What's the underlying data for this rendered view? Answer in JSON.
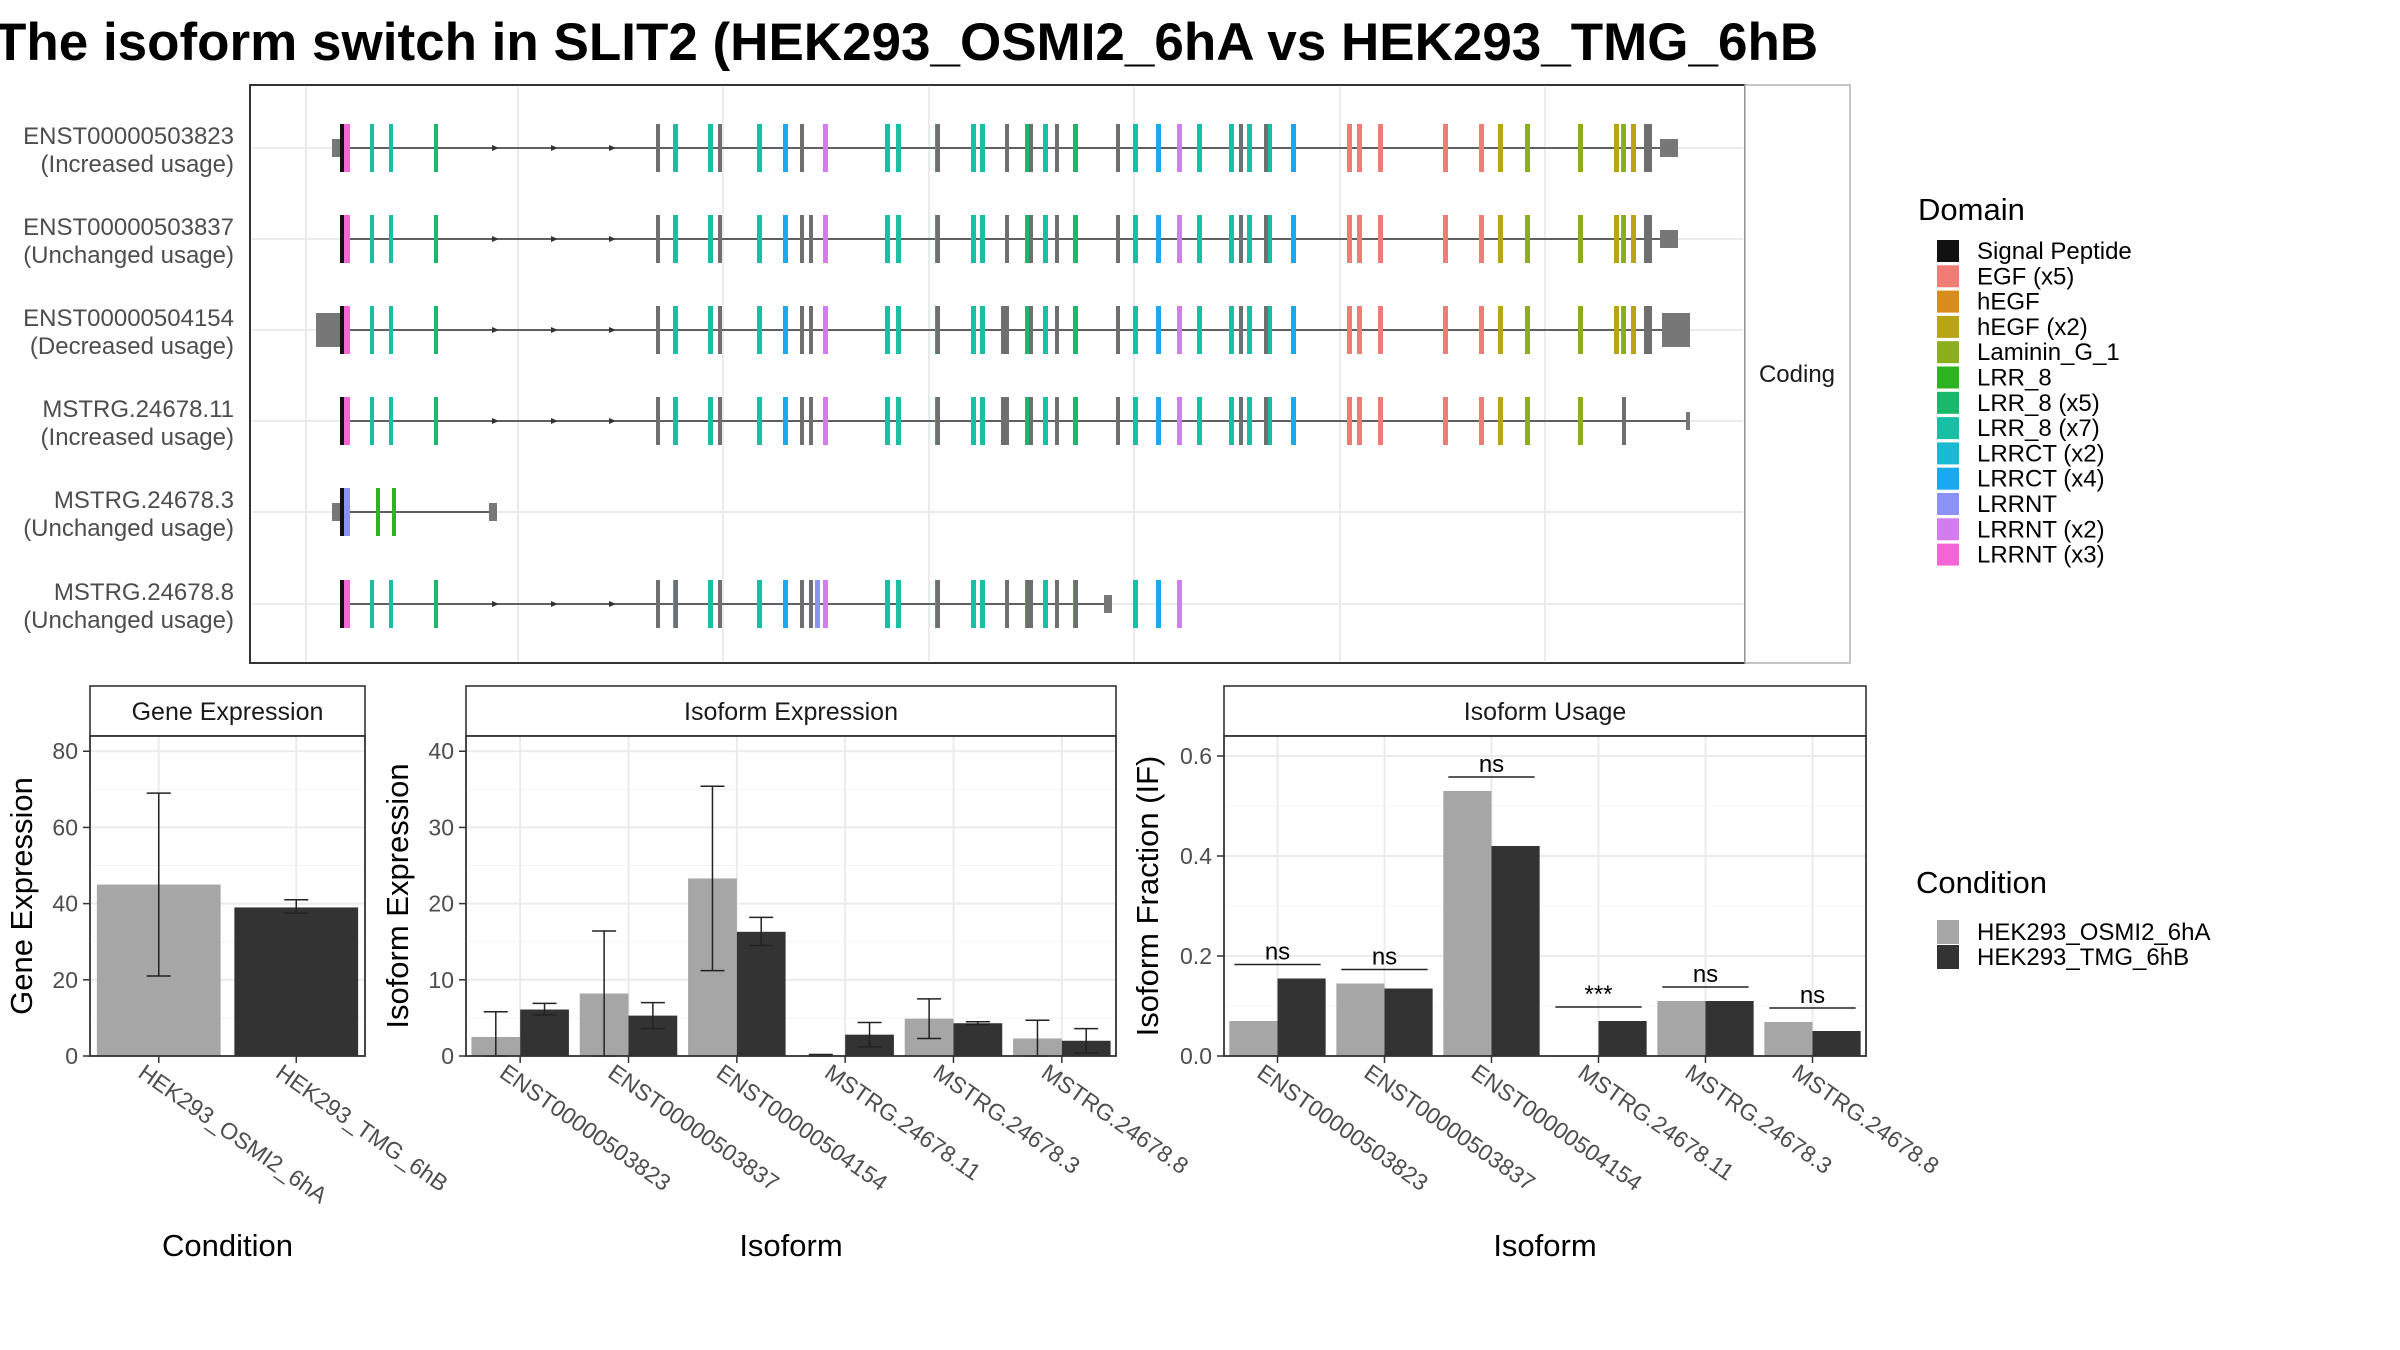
{
  "title": "The isoform switch in SLIT2 (HEK293_OSMI2_6hA vs HEK293_TMG_6hB",
  "colors": {
    "cond_a": "#a6a6a6",
    "cond_b": "#333333",
    "domains": {
      "Signal Peptide": "#111111",
      "EGF (x5)": "#f07c76",
      "hEGF": "#d88c1c",
      "hEGF (x2)": "#b8a414",
      "Laminin_G_1": "#8cad1c",
      "LRR_8": "#2db31f",
      "LRR_8 (x5)": "#19b86a",
      "LRR_8 (x7)": "#19bfa4",
      "LRRCT (x2)": "#1bbad4",
      "LRRCT (x4)": "#1aa8f0",
      "LRRNT": "#8c91f5",
      "LRRNT (x2)": "#d27cf0",
      "LRRNT (x3)": "#f466d6"
    }
  },
  "structure_panel": {
    "facet_label": "Coding",
    "isoforms": [
      {
        "id": "ENST00000503823",
        "usage": "(Increased usage)"
      },
      {
        "id": "ENST00000503837",
        "usage": "(Unchanged usage)"
      },
      {
        "id": "ENST00000504154",
        "usage": "(Decreased usage)"
      },
      {
        "id": "MSTRG.24678.11",
        "usage": "(Increased usage)"
      },
      {
        "id": "MSTRG.24678.3",
        "usage": "(Unchanged usage)"
      },
      {
        "id": "MSTRG.24678.8",
        "usage": "(Unchanged usage)"
      }
    ]
  },
  "legends": {
    "domain_title": "Domain",
    "domain_items": [
      "Signal Peptide",
      "EGF (x5)",
      "hEGF",
      "hEGF (x2)",
      "Laminin_G_1",
      "LRR_8",
      "LRR_8 (x5)",
      "LRR_8 (x7)",
      "LRRCT (x2)",
      "LRRCT (x4)",
      "LRRNT",
      "LRRNT (x2)",
      "LRRNT (x3)"
    ],
    "condition_title": "Condition",
    "condition_items": [
      "HEK293_OSMI2_6hA",
      "HEK293_TMG_6hB"
    ]
  },
  "chart_data": [
    {
      "type": "bar",
      "title": "Gene Expression",
      "xlabel": "Condition",
      "ylabel": "Gene Expression",
      "ylim": [
        0,
        84
      ],
      "yticks": [
        0,
        20,
        40,
        60,
        80
      ],
      "categories": [
        "HEK293_OSMI2_6hA",
        "HEK293_TMG_6hB"
      ],
      "values": [
        45,
        39
      ],
      "errors": [
        [
          21,
          69
        ],
        [
          37.5,
          41
        ]
      ]
    },
    {
      "type": "bar",
      "title": "Isoform Expression",
      "xlabel": "Isoform",
      "ylabel": "Isoform Expression",
      "ylim": [
        0,
        42
      ],
      "yticks": [
        0,
        10,
        20,
        30,
        40
      ],
      "categories": [
        "ENST00000503823",
        "ENST00000503837",
        "ENST00000504154",
        "MSTRG.24678.11",
        "MSTRG.24678.3",
        "MSTRG.24678.8"
      ],
      "series": [
        {
          "name": "HEK293_OSMI2_6hA",
          "values": [
            2.5,
            8.2,
            23.3,
            0.1,
            4.9,
            2.3
          ],
          "errors": [
            [
              0,
              5.8
            ],
            [
              0,
              16.4
            ],
            [
              11.2,
              35.4
            ],
            [
              0,
              0.2
            ],
            [
              2.3,
              7.5
            ],
            [
              0,
              4.7
            ]
          ]
        },
        {
          "name": "HEK293_TMG_6hB",
          "values": [
            6.1,
            5.3,
            16.3,
            2.8,
            4.3,
            2
          ],
          "errors": [
            [
              5.4,
              6.9
            ],
            [
              3.6,
              7.0
            ],
            [
              14.5,
              18.2
            ],
            [
              1.2,
              4.4
            ],
            [
              4.1,
              4.5
            ],
            [
              0.4,
              3.6
            ]
          ]
        }
      ]
    },
    {
      "type": "bar",
      "title": "Isoform Usage",
      "xlabel": "Isoform",
      "ylabel": "Isoform Fraction (IF)",
      "ylim": [
        0,
        0.64
      ],
      "yticks": [
        "0.0",
        "0.2",
        "0.4",
        "0.6"
      ],
      "categories": [
        "ENST00000503823",
        "ENST00000503837",
        "ENST00000504154",
        "MSTRG.24678.11",
        "MSTRG.24678.3",
        "MSTRG.24678.8"
      ],
      "series": [
        {
          "name": "HEK293_OSMI2_6hA",
          "values": [
            0.07,
            0.145,
            0.53,
            0.0,
            0.11,
            0.068
          ]
        },
        {
          "name": "HEK293_TMG_6hB",
          "values": [
            0.155,
            0.135,
            0.42,
            0.07,
            0.11,
            0.05
          ]
        }
      ],
      "significance": [
        "ns",
        "ns",
        "ns",
        "***",
        "ns",
        "ns"
      ]
    }
  ]
}
